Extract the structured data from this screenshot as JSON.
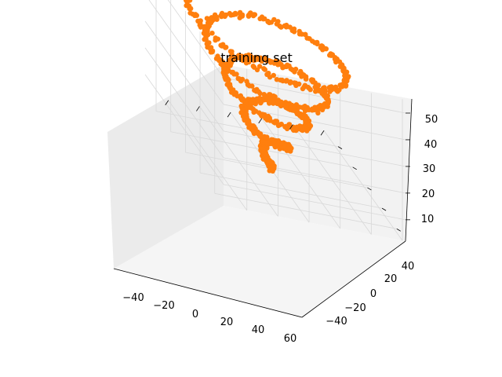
{
  "chart_data": {
    "type": "scatter",
    "projection": "3d",
    "title": "training set",
    "xlabel": "",
    "ylabel": "",
    "zlabel": "",
    "grid": true,
    "legend": "none",
    "xlim": [
      -55,
      62
    ],
    "ylim": [
      -55,
      52
    ],
    "zlim": [
      2,
      55
    ],
    "x_ticks": [
      "−40",
      "−20",
      "0",
      "20",
      "40",
      "60"
    ],
    "y_ticks": [
      "−40",
      "−20",
      "0",
      "20",
      "40"
    ],
    "z_ticks": [
      "10",
      "20",
      "30",
      "40",
      "50"
    ],
    "series": [
      {
        "color": "#ff7f0e",
        "shape": "conical-spiral",
        "z_range": [
          2,
          55
        ],
        "max_radius": 50,
        "turns": 4.5,
        "approx_points": 1000
      }
    ]
  },
  "colors": {
    "pane_back": "#f2f2f2",
    "pane_side": "#ebebeb",
    "pane_floor": "#f5f5f5",
    "grid": "#d8d8d8",
    "points": "#ff7f0e"
  }
}
